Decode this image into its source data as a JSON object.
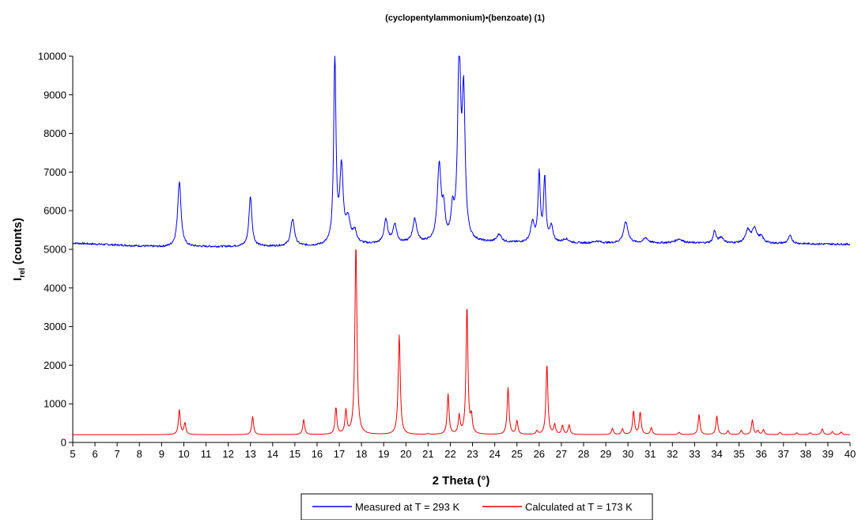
{
  "chart_data": {
    "type": "line",
    "title": "(cyclopentylammonium)•(benzoate) (1)",
    "xlabel": "2 Theta (°)",
    "ylabel": {
      "main": "I",
      "sub": "rel",
      "rest": " (counts)"
    },
    "xlim": [
      5,
      40
    ],
    "ylim": [
      0,
      10000
    ],
    "xticks": [
      5,
      6,
      7,
      8,
      9,
      10,
      11,
      12,
      13,
      14,
      15,
      16,
      17,
      18,
      19,
      20,
      21,
      22,
      23,
      24,
      25,
      26,
      27,
      28,
      29,
      30,
      31,
      32,
      33,
      34,
      35,
      36,
      37,
      38,
      39,
      40
    ],
    "yticks": [
      0,
      1000,
      2000,
      3000,
      4000,
      5000,
      6000,
      7000,
      8000,
      9000,
      10000
    ],
    "grid": false,
    "legend_position": "bottom",
    "series": [
      {
        "name": "Measured at T = 293 K",
        "color": "#0000ee",
        "baseline": [
          [
            5,
            5160
          ],
          [
            9,
            5060
          ],
          [
            16,
            5080
          ],
          [
            20,
            5150
          ],
          [
            24,
            5170
          ],
          [
            28,
            5150
          ],
          [
            32,
            5160
          ],
          [
            36,
            5150
          ],
          [
            40,
            5130
          ]
        ],
        "peaks": [
          [
            9.8,
            1700,
            0.09
          ],
          [
            13.0,
            1300,
            0.08
          ],
          [
            14.9,
            700,
            0.1
          ],
          [
            16.8,
            4900,
            0.06
          ],
          [
            17.1,
            1950,
            0.09
          ],
          [
            17.4,
            600,
            0.12
          ],
          [
            17.7,
            300,
            0.1
          ],
          [
            19.1,
            600,
            0.1
          ],
          [
            19.5,
            480,
            0.1
          ],
          [
            20.4,
            600,
            0.11
          ],
          [
            21.5,
            1950,
            0.1
          ],
          [
            21.7,
            700,
            0.08
          ],
          [
            22.1,
            700,
            0.08
          ],
          [
            22.4,
            4900,
            0.08
          ],
          [
            22.6,
            3600,
            0.08
          ],
          [
            24.2,
            200,
            0.12
          ],
          [
            25.7,
            500,
            0.1
          ],
          [
            26.0,
            1750,
            0.06
          ],
          [
            26.25,
            1650,
            0.06
          ],
          [
            26.55,
            400,
            0.09
          ],
          [
            27.2,
            100,
            0.15
          ],
          [
            28.6,
            50,
            0.2
          ],
          [
            29.9,
            550,
            0.12
          ],
          [
            30.8,
            130,
            0.12
          ],
          [
            32.3,
            100,
            0.2
          ],
          [
            33.9,
            320,
            0.07
          ],
          [
            34.2,
            150,
            0.12
          ],
          [
            35.4,
            330,
            0.12
          ],
          [
            35.7,
            380,
            0.12
          ],
          [
            36.0,
            150,
            0.12
          ],
          [
            37.3,
            200,
            0.1
          ]
        ]
      },
      {
        "name": "Calculated at T = 173 K",
        "color": "#ee0000",
        "baseline": [
          [
            5,
            200
          ],
          [
            40,
            200
          ]
        ],
        "peaks": [
          [
            9.8,
            640,
            0.05
          ],
          [
            10.05,
            300,
            0.05
          ],
          [
            13.1,
            470,
            0.05
          ],
          [
            15.4,
            390,
            0.05
          ],
          [
            16.85,
            690,
            0.05
          ],
          [
            17.3,
            600,
            0.05
          ],
          [
            17.75,
            4930,
            0.055
          ],
          [
            19.7,
            2580,
            0.055
          ],
          [
            21.0,
            20,
            0.06
          ],
          [
            21.9,
            1040,
            0.05
          ],
          [
            22.4,
            470,
            0.05
          ],
          [
            22.75,
            3330,
            0.05
          ],
          [
            22.95,
            420,
            0.05
          ],
          [
            24.6,
            1210,
            0.05
          ],
          [
            25.0,
            350,
            0.05
          ],
          [
            25.9,
            90,
            0.05
          ],
          [
            26.35,
            1830,
            0.05
          ],
          [
            26.7,
            250,
            0.05
          ],
          [
            27.05,
            230,
            0.05
          ],
          [
            27.35,
            250,
            0.05
          ],
          [
            29.3,
            160,
            0.05
          ],
          [
            29.75,
            150,
            0.05
          ],
          [
            30.25,
            610,
            0.05
          ],
          [
            30.55,
            580,
            0.05
          ],
          [
            31.05,
            180,
            0.05
          ],
          [
            32.3,
            60,
            0.05
          ],
          [
            33.2,
            520,
            0.05
          ],
          [
            34.0,
            480,
            0.05
          ],
          [
            34.5,
            100,
            0.05
          ],
          [
            35.1,
            110,
            0.05
          ],
          [
            35.6,
            380,
            0.05
          ],
          [
            35.85,
            100,
            0.05
          ],
          [
            36.1,
            130,
            0.05
          ],
          [
            36.85,
            60,
            0.05
          ],
          [
            37.6,
            50,
            0.05
          ],
          [
            38.2,
            50,
            0.05
          ],
          [
            38.75,
            150,
            0.05
          ],
          [
            39.2,
            80,
            0.05
          ],
          [
            39.6,
            70,
            0.05
          ]
        ]
      }
    ]
  }
}
